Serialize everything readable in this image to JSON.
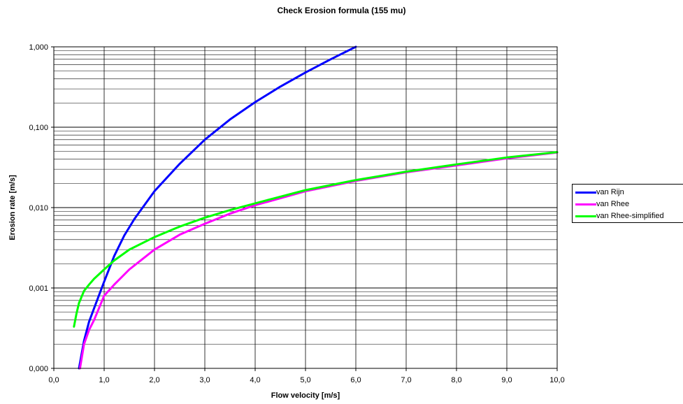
{
  "chart_data": {
    "type": "line",
    "title": "Check Erosion formula (155 mu)",
    "xlabel": "Flow velocity [m/s]",
    "ylabel": "Erosion rate [m/s]",
    "xlim": [
      0,
      10
    ],
    "ylim": [
      0.0001,
      1.0
    ],
    "y_scale": "log",
    "x_tick_labels": [
      "0,0",
      "1,0",
      "2,0",
      "3,0",
      "4,0",
      "5,0",
      "6,0",
      "7,0",
      "8,0",
      "9,0",
      "10,0"
    ],
    "y_tick_labels": [
      "0,000",
      "0,001",
      "0,010",
      "0,100",
      "1,000"
    ],
    "grid": true,
    "legend_position": "right",
    "series": [
      {
        "name": "van Rijn",
        "color": "#0000ff",
        "x": [
          0.5,
          0.6,
          0.7,
          0.8,
          1.0,
          1.2,
          1.4,
          1.6,
          2.0,
          2.5,
          3.0,
          3.5,
          4.0,
          4.5,
          5.0,
          5.5,
          6.0
        ],
        "y": [
          0.0001,
          0.00022,
          0.00038,
          0.00056,
          0.0012,
          0.0025,
          0.0045,
          0.0072,
          0.016,
          0.035,
          0.07,
          0.125,
          0.205,
          0.32,
          0.48,
          0.7,
          1.0
        ]
      },
      {
        "name": "van Rhee",
        "color": "#ff00ff",
        "x": [
          0.52,
          0.6,
          0.7,
          0.8,
          1.0,
          1.2,
          1.5,
          2.0,
          2.5,
          3.0,
          3.5,
          4.0,
          5.0,
          6.0,
          7.0,
          8.0,
          9.0,
          10.0
        ],
        "y": [
          0.0001,
          0.0002,
          0.0003,
          0.0004,
          0.0008,
          0.0011,
          0.0017,
          0.003,
          0.0046,
          0.0063,
          0.0084,
          0.0107,
          0.016,
          0.0215,
          0.0275,
          0.0335,
          0.041,
          0.0485
        ]
      },
      {
        "name": "van Rhee-simplified",
        "color": "#00ff00",
        "x": [
          0.4,
          0.45,
          0.5,
          0.6,
          0.7,
          0.8,
          1.0,
          1.2,
          1.5,
          2.0,
          2.5,
          3.0,
          3.5,
          4.0,
          5.0,
          6.0,
          7.0,
          8.0,
          9.0,
          10.0
        ],
        "y": [
          0.00033,
          0.00048,
          0.00065,
          0.00092,
          0.0011,
          0.0013,
          0.0017,
          0.0022,
          0.003,
          0.0043,
          0.0058,
          0.0075,
          0.0093,
          0.0113,
          0.0165,
          0.022,
          0.028,
          0.0345,
          0.042,
          0.049
        ]
      }
    ]
  }
}
